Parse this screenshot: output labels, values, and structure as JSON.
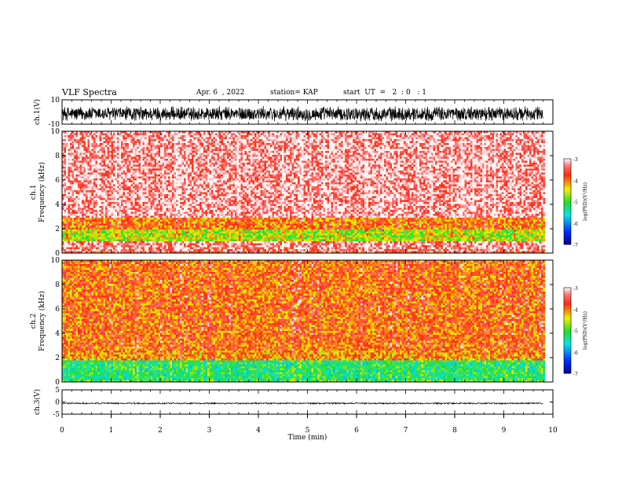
{
  "header": {
    "title": "VLF Spectra",
    "date": "Apr. 6  , 2022",
    "station": "station= KAP",
    "start": "start  UT  =   2  : 0   : 1"
  },
  "chart_data": [
    {
      "type": "line",
      "name": "ch1-waveform",
      "ylabel": "ch.1(V)",
      "ylim": [
        -10,
        10
      ],
      "yticks": [
        "10",
        "-10"
      ],
      "xlim": [
        0,
        10
      ],
      "x_extent": [
        0,
        9.8
      ],
      "description_values": {
        "typical_range": [
          -8,
          5
        ]
      }
    },
    {
      "type": "heatmap",
      "name": "ch1-spectrogram",
      "ylabel_lines": [
        "ch.1",
        "Frequency  (kHz)"
      ],
      "ylim": [
        0,
        10
      ],
      "yticks": [
        "0",
        "2",
        "4",
        "6",
        "8",
        "10"
      ],
      "xlim": [
        0,
        10
      ],
      "x_extent": [
        0,
        9.8
      ],
      "bands": [
        {
          "f": [
            0,
            0.3
          ],
          "level": -3.6
        },
        {
          "f": [
            0.3,
            1.0
          ],
          "level": -3.3
        },
        {
          "f": [
            1.0,
            2.0
          ],
          "level": -4.6
        },
        {
          "f": [
            2.0,
            3.0
          ],
          "level": -4.0
        },
        {
          "f": [
            3.0,
            10.0
          ],
          "level": -3.2
        }
      ],
      "colorbar": {
        "label": "log(PSD)(V²/Hz)",
        "range": [
          -7,
          -3
        ],
        "ticks": [
          "-3",
          "-4",
          "-5",
          "-6",
          "-7"
        ]
      }
    },
    {
      "type": "heatmap",
      "name": "ch2-spectrogram",
      "ylabel_lines": [
        "ch.2",
        "Frequency  (kHz)"
      ],
      "ylim": [
        0,
        10
      ],
      "yticks": [
        "0",
        "2",
        "4",
        "6",
        "8",
        "10"
      ],
      "xlim": [
        0,
        10
      ],
      "x_extent": [
        0,
        9.8
      ],
      "bands": [
        {
          "f": [
            0,
            0.3
          ],
          "level": -5.0
        },
        {
          "f": [
            0.3,
            1.8
          ],
          "level": -5.2
        },
        {
          "f": [
            1.8,
            2.6
          ],
          "level": -4.1
        },
        {
          "f": [
            2.6,
            10.0
          ],
          "level": -3.9
        }
      ],
      "colorbar": {
        "label": "log(PSD)(V²/Hz)",
        "range": [
          -7,
          -3
        ],
        "ticks": [
          "-3",
          "-4",
          "-5",
          "-6",
          "-7"
        ]
      }
    },
    {
      "type": "line",
      "name": "ch3-waveform",
      "ylabel": "ch.3(V)",
      "ylim": [
        -5,
        5
      ],
      "yticks": [
        "5",
        "0",
        "-5"
      ],
      "xlim": [
        0,
        10
      ],
      "x_extent": [
        0,
        9.8
      ],
      "description_values": {
        "typical_range": [
          -0.9,
          -0.2
        ]
      },
      "xlabel": "Time  (min)",
      "xticks": [
        "0",
        "1",
        "2",
        "3",
        "4",
        "5",
        "6",
        "7",
        "8",
        "9",
        "10"
      ]
    }
  ]
}
